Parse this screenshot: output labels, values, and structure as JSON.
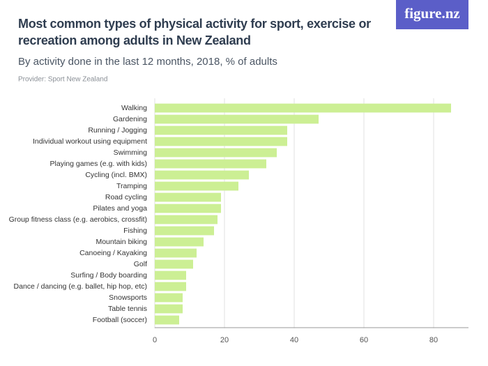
{
  "logo": "figure.nz",
  "chart_data": {
    "type": "barh",
    "title": "Most common types of physical activity for sport, exercise or recreation among adults in New Zealand",
    "subtitle": "By activity done in the last 12 months, 2018, % of adults",
    "provider": "Provider: Sport New Zealand",
    "categories": [
      "Walking",
      "Gardening",
      "Running / Jogging",
      "Individual workout using equipment",
      "Swimming",
      "Playing games (e.g. with kids)",
      "Cycling (incl. BMX)",
      "Tramping",
      "Road cycling",
      "Pilates and yoga",
      "Group fitness class (e.g. aerobics, crossfit)",
      "Fishing",
      "Mountain biking",
      "Canoeing / Kayaking",
      "Golf",
      "Surfing / Body boarding",
      "Dance / dancing (e.g. ballet, hip hop, etc)",
      "Snowsports",
      "Table tennis",
      "Football (soccer)"
    ],
    "values": [
      85,
      47,
      38,
      38,
      35,
      32,
      27,
      24,
      19,
      19,
      18,
      17,
      14,
      12,
      11,
      9,
      9,
      8,
      8,
      7
    ],
    "color": "#ccef94",
    "xlim": [
      0,
      90
    ],
    "xticks": [
      0,
      20,
      40,
      60,
      80
    ],
    "grid": true
  }
}
